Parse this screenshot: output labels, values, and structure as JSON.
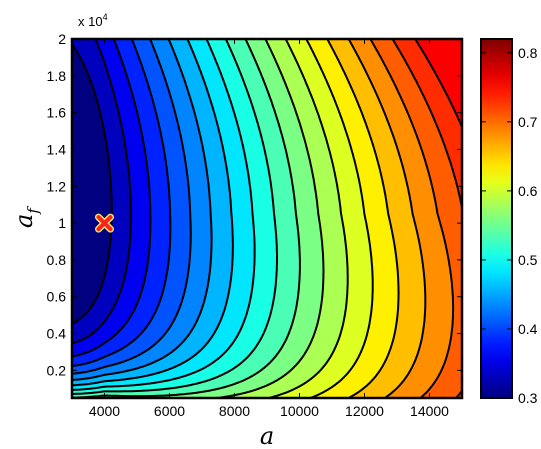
{
  "chart_data": {
    "type": "heatmap",
    "subtype": "filled-contour",
    "colormap": "jet",
    "x": {
      "label": "a",
      "range": [
        3000,
        15000
      ],
      "ticks": [
        4000,
        6000,
        8000,
        10000,
        12000,
        14000
      ],
      "tick_labels": [
        "4000",
        "6000",
        "8000",
        "10000",
        "12000",
        "14000"
      ]
    },
    "y": {
      "label": "a",
      "label_subscript": "f",
      "range": [
        500,
        20000
      ],
      "ticks": [
        2000,
        4000,
        6000,
        8000,
        10000,
        12000,
        14000,
        16000,
        18000,
        20000
      ],
      "tick_labels": [
        "0.2",
        "0.4",
        "0.6",
        "0.8",
        "1",
        "1.2",
        "1.4",
        "1.6",
        "1.8",
        "2"
      ],
      "multiplier_base": "x 10",
      "multiplier_exponent": "4"
    },
    "colorbar": {
      "range": [
        0.3,
        0.82
      ],
      "ticks": [
        0.3,
        0.4,
        0.5,
        0.6,
        0.7,
        0.8
      ],
      "tick_labels": [
        "0.3",
        "0.4",
        "0.5",
        "0.6",
        "0.7",
        "0.8"
      ]
    },
    "field": {
      "min_value": 0.31,
      "min_location": [
        4000,
        10500
      ],
      "contour_levels": [
        0.32,
        0.345,
        0.37,
        0.395,
        0.42,
        0.445,
        0.47,
        0.495,
        0.52,
        0.545,
        0.57,
        0.595,
        0.62,
        0.645,
        0.67,
        0.695,
        0.72,
        0.745
      ]
    },
    "marker": {
      "symbol": "x",
      "x": 4000,
      "y": 10000,
      "color": "#ff2020",
      "edge_color": "#f0e060"
    },
    "grid": false
  }
}
